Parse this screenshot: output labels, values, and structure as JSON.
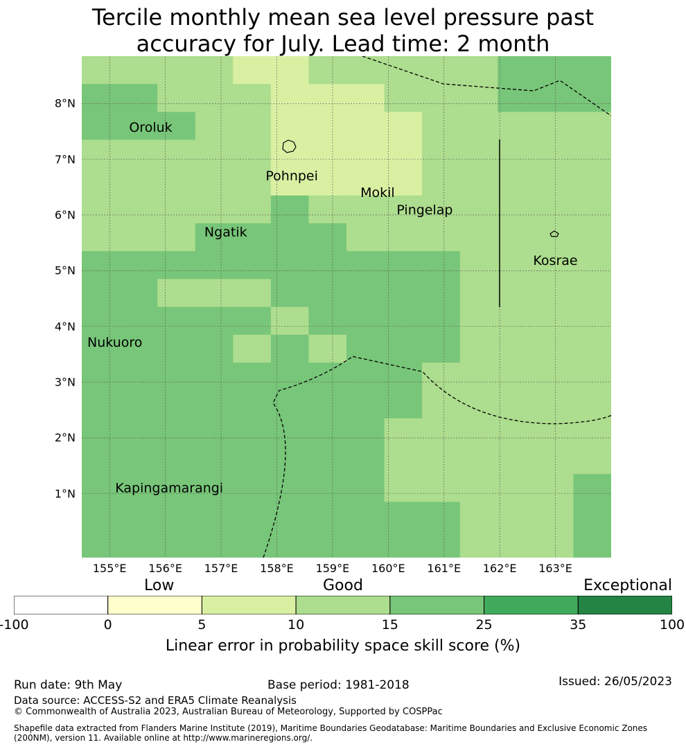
{
  "title": {
    "line1": "Tercile monthly mean sea level pressure past",
    "line2": "accuracy for July. Lead time: 2 month"
  },
  "map": {
    "lon_range": [
      154.5,
      164.0
    ],
    "lat_range": [
      -0.15,
      8.85
    ],
    "lat_ticks": [
      {
        "value": 8,
        "label": "8°N"
      },
      {
        "value": 7,
        "label": "7°N"
      },
      {
        "value": 6,
        "label": "6°N"
      },
      {
        "value": 5,
        "label": "5°N"
      },
      {
        "value": 4,
        "label": "4°N"
      },
      {
        "value": 3,
        "label": "3°N"
      },
      {
        "value": 2,
        "label": "2°N"
      },
      {
        "value": 1,
        "label": "1°N"
      }
    ],
    "lon_ticks": [
      {
        "value": 155,
        "label": "155°E"
      },
      {
        "value": 156,
        "label": "156°E"
      },
      {
        "value": 157,
        "label": "157°E"
      },
      {
        "value": 158,
        "label": "158°E"
      },
      {
        "value": 159,
        "label": "159°E"
      },
      {
        "value": 160,
        "label": "160°E"
      },
      {
        "value": 161,
        "label": "161°E"
      },
      {
        "value": 162,
        "label": "162°E"
      },
      {
        "value": 163,
        "label": "163°E"
      }
    ],
    "islands": [
      {
        "name": "Oroluk",
        "lon": 155.35,
        "lat": 7.55
      },
      {
        "name": "Pohnpei",
        "lon": 157.8,
        "lat": 6.68
      },
      {
        "name": "Mokil",
        "lon": 159.5,
        "lat": 6.38
      },
      {
        "name": "Pingelap",
        "lon": 160.15,
        "lat": 6.07
      },
      {
        "name": "Ngatik",
        "lon": 156.7,
        "lat": 5.68
      },
      {
        "name": "Kosrae",
        "lon": 162.6,
        "lat": 5.17
      },
      {
        "name": "Nukuoro",
        "lon": 154.6,
        "lat": 3.7
      },
      {
        "name": "Kapingamarangi",
        "lon": 155.1,
        "lat": 1.08
      }
    ]
  },
  "colorbar": {
    "ticks": [
      "-100",
      "0",
      "5",
      "10",
      "15",
      "25",
      "35",
      "100"
    ],
    "colors": [
      "#ffffff",
      "#ffffcc",
      "#d9f0a3",
      "#addd8e",
      "#78c679",
      "#41ab5d",
      "#238443"
    ],
    "categories": {
      "low": "Low",
      "good": "Good",
      "exceptional": "Exceptional"
    },
    "title": "Linear error in probability space skill score (%)"
  },
  "footer": {
    "run_date": "Run date: 9th May",
    "base_period": "Base period: 1981-2018",
    "issued": "Issued: 26/05/2023",
    "data_source": "Data source: ACCESS-S2 and ERA5 Climate Reanalysis",
    "copyright": "© Commonwealth of Australia 2023, Australian Bureau of Meteorology, Supported by COSPPac",
    "shapefile_line1": "Shapefile data extracted from Flanders Marine Institute (2019), Maritime Boundaries Geodatabase: Maritime Boundaries and Exclusive Economic Zones",
    "shapefile_line2": "(200NM), version 11. Available online at http://www.marineregions.org/."
  }
}
